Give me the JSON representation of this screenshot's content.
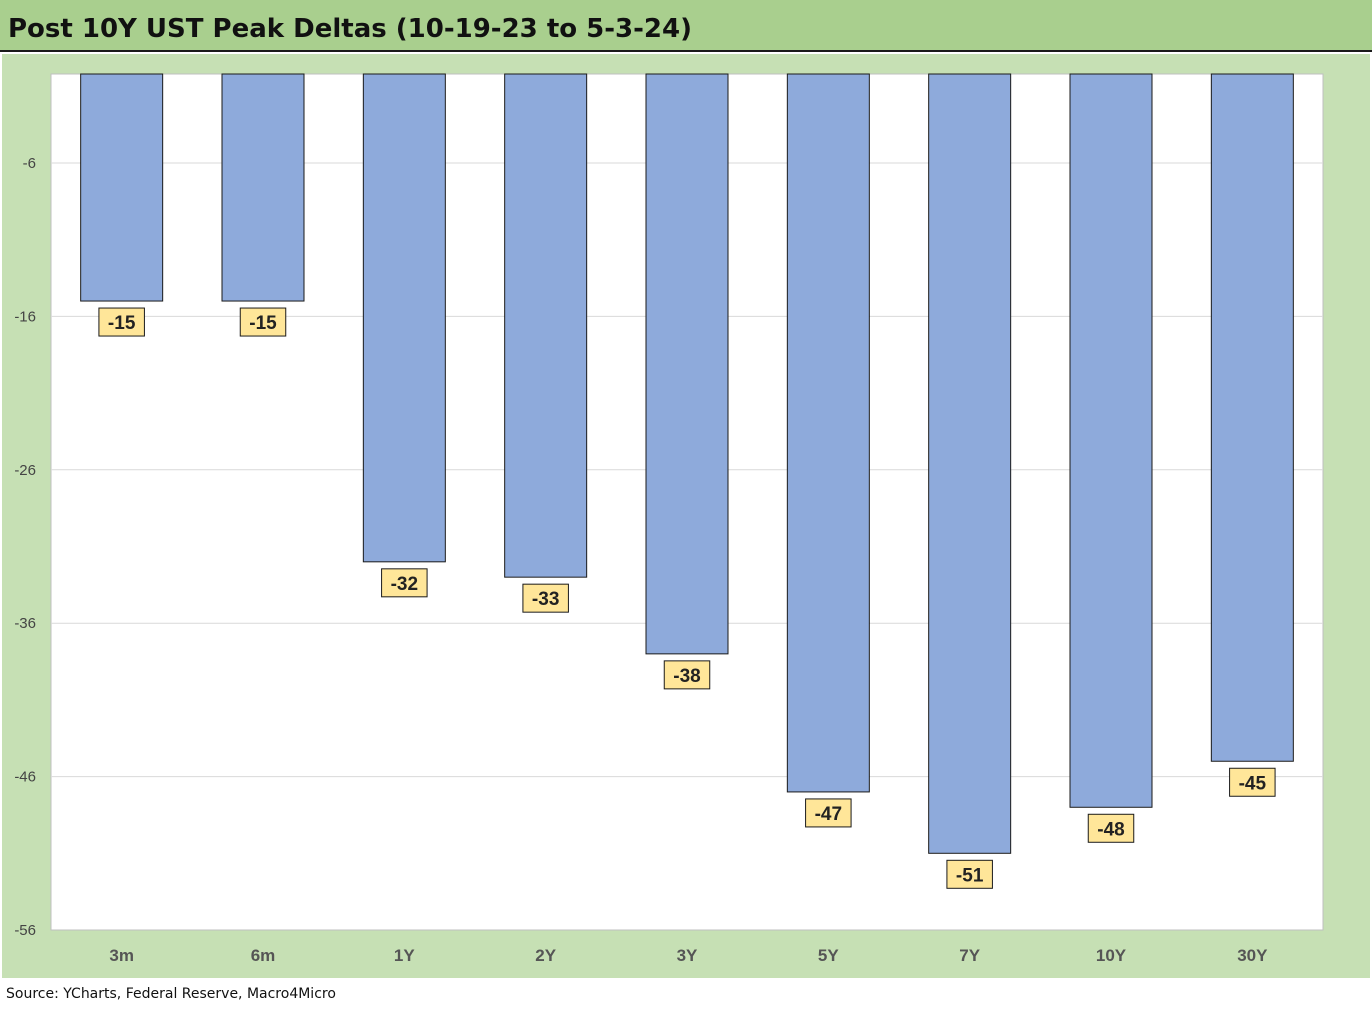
{
  "header": {
    "title": "Post 10Y UST Peak Deltas (10-19-23 to 5-3-24)"
  },
  "footer": {
    "source": "Source: YCharts, Federal Reserve, Macro4Micro"
  },
  "colors": {
    "title_bar": "#a9cf8e",
    "chart_background": "#c6e0b4",
    "plot_background": "#ffffff",
    "bar_fill": "#8eaadb",
    "bar_stroke": "#1a1a1a",
    "label_fill": "#ffe699",
    "gridline": "#d9d9d9"
  },
  "chart_data": {
    "type": "bar",
    "title": "Post 10Y UST Peak Deltas (10-19-23 to 5-3-24)",
    "categories": [
      "3m",
      "6m",
      "1Y",
      "2Y",
      "3Y",
      "5Y",
      "7Y",
      "10Y",
      "30Y"
    ],
    "values": [
      -15,
      -15,
      -32,
      -33,
      -38,
      -47,
      -51,
      -48,
      -45
    ],
    "data_labels": [
      "-15",
      "-15",
      "-32",
      "-33",
      "-38",
      "-47",
      "-51",
      "-48",
      "-45"
    ],
    "yticks": [
      -6,
      -16,
      -26,
      -36,
      -46,
      -56
    ],
    "ytick_labels": [
      "-6",
      "-16",
      "-26",
      "-36",
      "-46",
      "-56"
    ],
    "ylim": [
      -56,
      0
    ],
    "xlabel": "",
    "ylabel": "",
    "grid": true,
    "legend": "none"
  }
}
